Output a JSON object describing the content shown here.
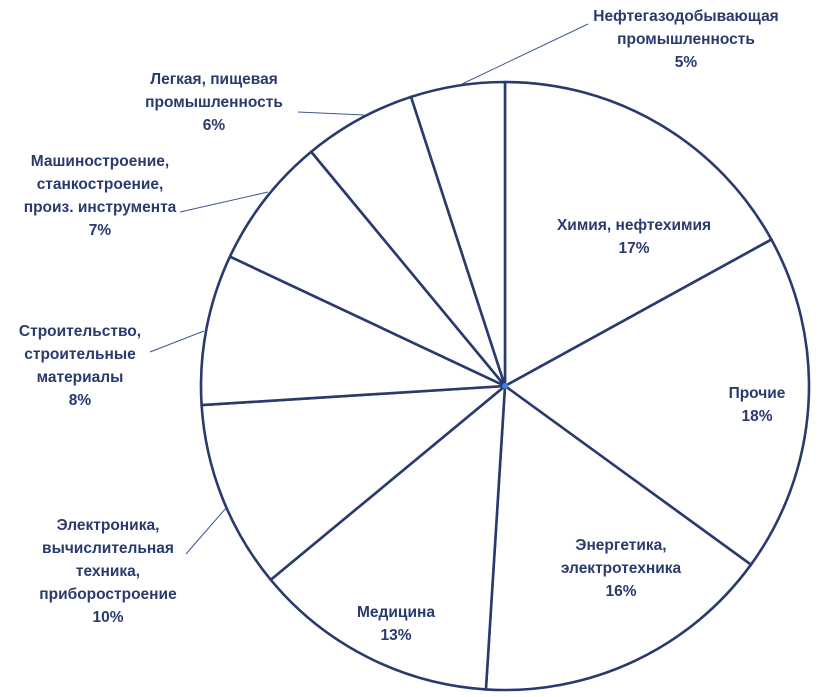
{
  "chart_data": {
    "type": "pie",
    "title": "",
    "start_angle_deg": 0,
    "direction": "clockwise",
    "colors": {
      "slice_fill": "#ffffff",
      "slice_stroke": "#2a3a6e",
      "label_text": "#2a3a6e",
      "leader_line": "#3b5a8f",
      "center_dot": "#3b7fd6"
    },
    "slices": [
      {
        "label": "Химия, нефтехимия",
        "lines": [
          "Химия, нефтехимия"
        ],
        "percent_label": "17%",
        "value": 17
      },
      {
        "label": "Прочие",
        "lines": [
          "Прочие"
        ],
        "percent_label": "18%",
        "value": 18
      },
      {
        "label": "Энергетика, электротехника",
        "lines": [
          "Энергетика,",
          "электротехника"
        ],
        "percent_label": "16%",
        "value": 16
      },
      {
        "label": "Медицина",
        "lines": [
          "Медицина"
        ],
        "percent_label": "13%",
        "value": 13
      },
      {
        "label": "Электроника, вычислительная техника, приборостроение",
        "lines": [
          "Электроника,",
          "вычислительная",
          "техника,",
          "приборостроение"
        ],
        "percent_label": "10%",
        "value": 10
      },
      {
        "label": "Строительство, строительные материалы",
        "lines": [
          "Строительство,",
          "строительные",
          "материалы"
        ],
        "percent_label": "8%",
        "value": 8
      },
      {
        "label": "Машиностроение, станкостроение, произ. инструмента",
        "lines": [
          "Машиностроение,",
          "станкостроение,",
          "произ. инструмента"
        ],
        "percent_label": "7%",
        "value": 7
      },
      {
        "label": "Легкая, пищевая промышленность",
        "lines": [
          "Легкая, пищевая",
          "промышленность"
        ],
        "percent_label": "6%",
        "value": 6
      },
      {
        "label": "Нефтегазодобывающая промышленность",
        "lines": [
          "Нефтегазодобывающая",
          "промышленность"
        ],
        "percent_label": "5%",
        "value": 5
      }
    ]
  }
}
